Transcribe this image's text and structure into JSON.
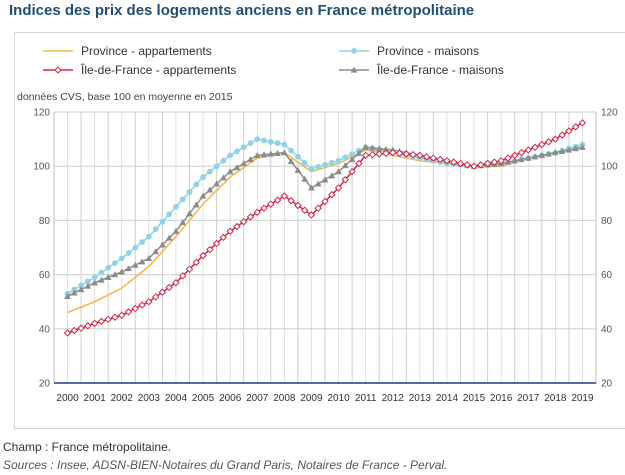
{
  "title": "Indices des prix des logements anciens en France métropolitaine",
  "footer": {
    "champ": "Champ : France métropolitaine.",
    "sources": "Sources : Insee, ADSN-BIEN-Notaires du Grand Paris, Notaires de France - Perval."
  },
  "colors": {
    "province_appartements": "#f4b640",
    "province_maisons": "#8fd3e8",
    "idf_appartements": "#d8264a",
    "idf_maisons": "#8c8c8c",
    "base_line": "#1f3a8a",
    "grid": "#cfcfcf"
  },
  "chart_data": {
    "type": "line",
    "ylabel": "données CVS, base 100 en moyenne en 2015",
    "ylim": [
      20,
      120
    ],
    "yticks": [
      20,
      40,
      60,
      80,
      100,
      120
    ],
    "xlim": [
      2000,
      2020
    ],
    "categories": [
      "2000",
      "2001",
      "2002",
      "2003",
      "2004",
      "2005",
      "2006",
      "2007",
      "2008",
      "2009",
      "2010",
      "2011",
      "2012",
      "2013",
      "2014",
      "2015",
      "2016",
      "2017",
      "2018",
      "2019"
    ],
    "legend": [
      {
        "key": "province_appartements",
        "label": "Province - appartements",
        "marker": "none"
      },
      {
        "key": "province_maisons",
        "label": "Province - maisons",
        "marker": "circle"
      },
      {
        "key": "idf_appartements",
        "label": "Île-de-France - appartements",
        "marker": "diamond"
      },
      {
        "key": "idf_maisons",
        "label": "Île-de-France - maisons",
        "marker": "triangle"
      }
    ],
    "series": [
      {
        "key": "province_appartements",
        "name": "Province - appartements",
        "values": [
          46,
          50,
          55,
          63,
          74,
          86,
          96,
          103,
          105,
          98,
          101,
          106,
          104,
          102,
          101,
          100,
          100,
          103,
          105,
          108
        ]
      },
      {
        "key": "province_maisons",
        "name": "Province - maisons",
        "values": [
          53,
          59,
          66,
          74,
          85,
          96,
          104,
          110,
          108,
          99,
          102,
          107,
          105,
          103,
          101,
          100,
          101,
          103,
          105,
          108
        ]
      },
      {
        "key": "idf_appartements",
        "name": "Île-de-France - appartements",
        "values": [
          38.5,
          42,
          45,
          50,
          57,
          67,
          76,
          83,
          89,
          82,
          92,
          104,
          105,
          104,
          102,
          100,
          102,
          106,
          110,
          116
        ]
      },
      {
        "key": "idf_maisons",
        "name": "Île-de-France - maisons",
        "values": [
          52,
          57,
          61,
          66,
          76,
          89,
          98,
          104,
          105,
          92,
          98,
          107,
          106,
          104,
          102,
          100,
          101,
          103,
          105,
          107
        ]
      }
    ]
  }
}
